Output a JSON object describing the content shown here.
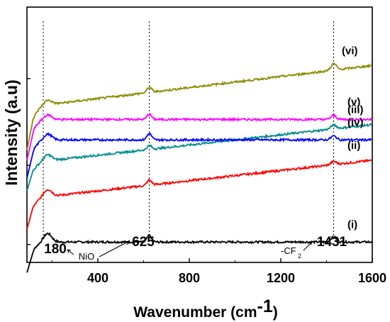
{
  "chart_data": {
    "type": "line",
    "title": "",
    "xlabel_main": "Wavenumber (cm",
    "xlabel_exp": "-1",
    "xlabel_close": ")",
    "ylabel": "Intensity (a.u)",
    "xlim": [
      90,
      1600
    ],
    "x_ticks": [
      "400",
      "800",
      "1200",
      "1600"
    ],
    "grid": false,
    "legend": "none",
    "y_ticks_labeled": false,
    "series": [
      {
        "name": "(i)",
        "color": "#000000",
        "baseline": 0.08,
        "rise": 0.12,
        "slope": 0.0,
        "peak180": 0.035,
        "peak625": 0.025,
        "peak1431": 0.02
      },
      {
        "name": "(ii)",
        "color": "#ff0000",
        "baseline": 0.26,
        "rise": 0.13,
        "slope": 0.0001,
        "peak180": 0.03,
        "peak625": 0.02,
        "peak1431": 0.012
      },
      {
        "name": "(iii)",
        "color": "#008b8b",
        "baseline": 0.4,
        "rise": 0.12,
        "slope": 0.0001,
        "peak180": 0.025,
        "peak625": 0.015,
        "peak1431": 0.015
      },
      {
        "name": "(iv)",
        "color": "#0000ff",
        "baseline": 0.48,
        "rise": 0.15,
        "slope": 0.0,
        "peak180": 0.025,
        "peak625": 0.025,
        "peak1431": 0.015
      },
      {
        "name": "(v)",
        "color": "#ff00ff",
        "baseline": 0.56,
        "rise": 0.16,
        "slope": 0.0,
        "peak180": 0.02,
        "peak625": 0.02,
        "peak1431": 0.015
      },
      {
        "name": "(vi)",
        "color": "#8b8b00",
        "baseline": 0.62,
        "rise": 0.18,
        "slope": 0.000108,
        "peak180": 0.02,
        "peak625": 0.02,
        "peak1431": 0.025
      }
    ],
    "reference_lines": [
      180,
      625,
      1431
    ],
    "annotations": {
      "peak1": "180",
      "peak2": "625",
      "peak3": "1431",
      "nio": "NiO",
      "cf": "-CF",
      "cf_sub": "2"
    }
  }
}
